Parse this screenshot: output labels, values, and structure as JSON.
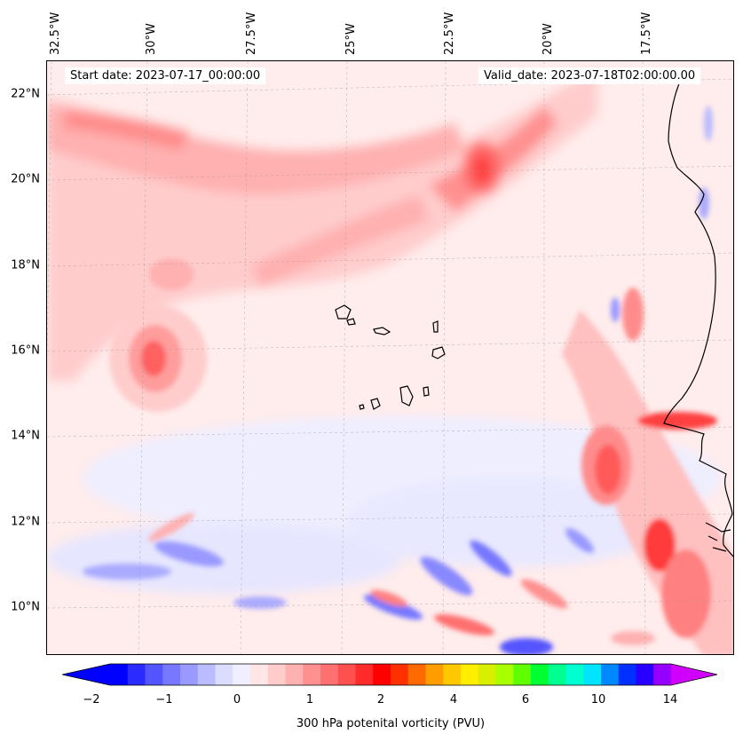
{
  "map": {
    "start_date": "Start date: 2023-07-17_00:00:00",
    "valid_date": "Valid_date: 2023-07-18T02:00:00.00",
    "lon_labels": [
      "32.5°W",
      "30°W",
      "27.5°W",
      "25°W",
      "22.5°W",
      "20°W",
      "17.5°W"
    ],
    "lat_labels": [
      "22°N",
      "20°N",
      "18°N",
      "16°N",
      "14°N",
      "12°N",
      "10°N"
    ],
    "background_color": "#ffecec",
    "coastline_color": "#000000"
  },
  "colorbar": {
    "label": "300 hPa potenital vorticity (PVU)",
    "ticks": [
      "−2",
      "−1",
      "0",
      "1",
      "2",
      "4",
      "6",
      "10",
      "14"
    ],
    "colors": [
      "#0000ff",
      "#2b2bff",
      "#5555ff",
      "#7777ff",
      "#9999ff",
      "#bbbbff",
      "#dcdcff",
      "#efefff",
      "#ffe6e6",
      "#ffcccc",
      "#ffb0b0",
      "#ff9090",
      "#ff7070",
      "#ff5050",
      "#ff2a2a",
      "#ff0000",
      "#ff3000",
      "#ff6a00",
      "#ff9c00",
      "#ffc800",
      "#ffee00",
      "#d8f000",
      "#a8ff00",
      "#60ff00",
      "#00ff30",
      "#00ff90",
      "#00ffd0",
      "#00e4ff",
      "#0088ff",
      "#0030ff",
      "#2800ff",
      "#9600ff"
    ],
    "extend_min_color": "#0000ff",
    "extend_max_color": "#d000ff"
  }
}
